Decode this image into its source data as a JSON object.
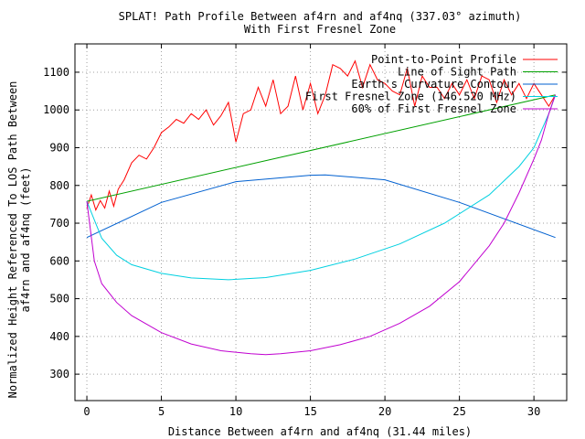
{
  "chart_data": {
    "type": "line",
    "title": "SPLAT! Path Profile Between af4rn and af4nq (337.03° azimuth)",
    "subtitle": "With First Fresnel Zone",
    "xlabel": "Distance Between af4rn and af4nq (31.44 miles)",
    "ylabel": [
      "Normalized Height Referenced To LOS Path Between",
      "af4rn and af4nq (feet)"
    ],
    "xlim": [
      -0.8,
      32.2
    ],
    "ylim": [
      230,
      1175
    ],
    "x_ticks": [
      0,
      5,
      10,
      15,
      20,
      25,
      30
    ],
    "x_tick_labels": [
      "0",
      "5",
      "10",
      "15",
      "20",
      "25",
      "30"
    ],
    "y_ticks": [
      300,
      400,
      500,
      600,
      700,
      800,
      900,
      1000,
      1100
    ],
    "y_tick_labels": [
      "300",
      "400",
      "500",
      "600",
      "700",
      "800",
      "900",
      "1000",
      "1100"
    ],
    "grid": true,
    "legend_position": "top-right",
    "series": [
      {
        "name": "Point-to-Point Profile",
        "color": "#ff0000",
        "x": [
          0,
          0.3,
          0.6,
          0.9,
          1.2,
          1.5,
          1.8,
          2.1,
          2.5,
          3.0,
          3.5,
          4.0,
          4.5,
          5.0,
          5.5,
          6.0,
          6.5,
          7.0,
          7.5,
          8.0,
          8.5,
          9.0,
          9.5,
          10.0,
          10.5,
          11.0,
          11.5,
          12.0,
          12.5,
          13.0,
          13.5,
          14.0,
          14.5,
          15.0,
          15.5,
          16.0,
          16.5,
          17.0,
          17.5,
          18.0,
          18.5,
          19.0,
          19.5,
          20.0,
          20.5,
          21.0,
          21.5,
          22.0,
          22.5,
          23.0,
          23.5,
          24.0,
          24.5,
          25.0,
          25.5,
          26.0,
          26.5,
          27.0,
          27.5,
          28.0,
          28.5,
          29.0,
          29.5,
          30.0,
          30.5,
          31.0,
          31.44
        ],
        "values": [
          740,
          775,
          735,
          760,
          740,
          785,
          745,
          790,
          815,
          860,
          880,
          870,
          900,
          940,
          955,
          975,
          965,
          990,
          975,
          1000,
          960,
          985,
          1020,
          915,
          990,
          1000,
          1060,
          1010,
          1080,
          990,
          1010,
          1090,
          1000,
          1070,
          990,
          1040,
          1120,
          1110,
          1090,
          1130,
          1060,
          1120,
          1080,
          1070,
          1050,
          1040,
          1110,
          1010,
          1090,
          1060,
          1060,
          1030,
          1070,
          1040,
          1080,
          1030,
          1090,
          1080,
          1020,
          1080,
          1040,
          1070,
          1030,
          1070,
          1040,
          1010,
          1040
        ]
      },
      {
        "name": "Line of Sight Path",
        "color": "#00a000",
        "x": [
          0,
          31.44
        ],
        "values": [
          758,
          1040
        ]
      },
      {
        "name": "Earth's Curvature Contour",
        "color": "#0060d0",
        "x": [
          0,
          5,
          10,
          15,
          16,
          20,
          25,
          31.44
        ],
        "values": [
          662,
          755,
          810,
          827,
          828,
          815,
          755,
          662
        ]
      },
      {
        "name": "First Fresnel Zone (146.520 MHz)",
        "color": "#00d0e0",
        "x": [
          0,
          1,
          2,
          3,
          5,
          7,
          9.5,
          12,
          15,
          18,
          21,
          24,
          27,
          29,
          30,
          31,
          31.44
        ],
        "values": [
          758,
          660,
          615,
          590,
          567,
          555,
          550,
          556,
          575,
          605,
          645,
          700,
          775,
          850,
          900,
          990,
          1040
        ]
      },
      {
        "name": "60% of First Fresnel Zone",
        "color": "#c000d0",
        "x": [
          0,
          0.5,
          1,
          2,
          3,
          5,
          7,
          9,
          11,
          12,
          13,
          15,
          17,
          19,
          21,
          23,
          25,
          27,
          28,
          29,
          30,
          30.5,
          31,
          31.44
        ],
        "values": [
          758,
          600,
          540,
          490,
          455,
          410,
          380,
          362,
          354,
          352,
          354,
          362,
          378,
          400,
          435,
          480,
          545,
          640,
          700,
          780,
          870,
          920,
          990,
          1040
        ]
      }
    ]
  }
}
